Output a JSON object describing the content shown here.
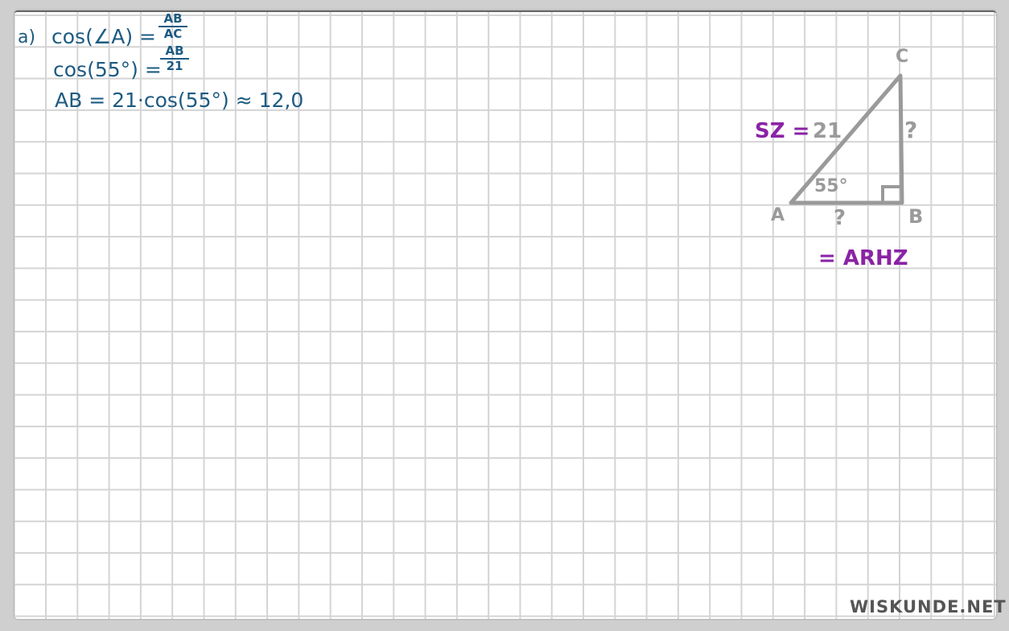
{
  "part_label": "a)",
  "equations": {
    "line1_lhs": "cos(∠A) =",
    "line1_num": "AB",
    "line1_den": "AC",
    "line2_lhs": "cos(55°) =",
    "line2_num": "AB",
    "line2_den": "21",
    "line3": "AB = 21·cos(55°) ≈ 12,0"
  },
  "triangle": {
    "vertex_a": "A",
    "vertex_b": "B",
    "vertex_c": "C",
    "hypotenuse_label": "SZ =",
    "hypotenuse_value": "21",
    "angle_a": "55°",
    "side_ab_unknown": "?",
    "side_bc_unknown": "?",
    "ab_note": "= ARHZ"
  },
  "logo": "WISKUNDE.NET",
  "colors": {
    "equations": "#1d5b82",
    "diagram": "#9a9a9a",
    "annotation": "#8a23a5"
  }
}
